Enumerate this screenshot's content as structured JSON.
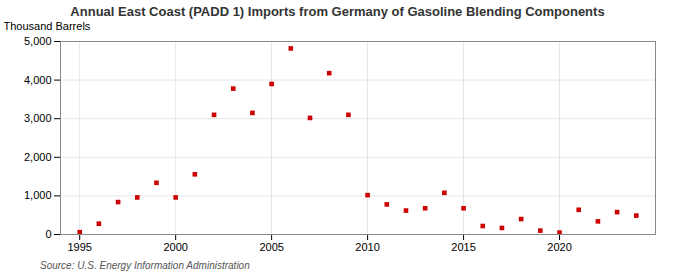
{
  "chart_data": {
    "type": "scatter",
    "title": "Annual East Coast (PADD 1) Imports from Germany of Gasoline Blending Components",
    "ylabel": "Thousand Barrels",
    "source": "Source: U.S. Energy Information Administration",
    "x": [
      1995,
      1996,
      1997,
      1998,
      1999,
      2000,
      2001,
      2002,
      2003,
      2004,
      2005,
      2006,
      2007,
      2008,
      2009,
      2010,
      2011,
      2012,
      2013,
      2014,
      2015,
      2016,
      2017,
      2018,
      2019,
      2020,
      2021,
      2022,
      2023,
      2024
    ],
    "values": [
      60,
      280,
      840,
      960,
      1340,
      960,
      1560,
      3100,
      3780,
      3150,
      3900,
      4820,
      3020,
      4180,
      3100,
      1020,
      780,
      620,
      680,
      1080,
      680,
      220,
      170,
      400,
      100,
      50,
      640,
      340,
      580,
      490
    ],
    "color": "#cc0000",
    "marker": "square",
    "xlim": [
      1994,
      2025
    ],
    "ylim": [
      0,
      5000
    ],
    "xticks": [
      1995,
      2000,
      2005,
      2010,
      2015,
      2020
    ],
    "yticks": [
      0,
      {
        "value": 1000,
        "label": "1,000"
      },
      {
        "value": 2000,
        "label": "2,000"
      },
      {
        "value": 3000,
        "label": "3,000"
      },
      {
        "value": 4000,
        "label": "4,000"
      },
      {
        "value": 5000,
        "label": "5,000"
      }
    ],
    "grid": true
  }
}
